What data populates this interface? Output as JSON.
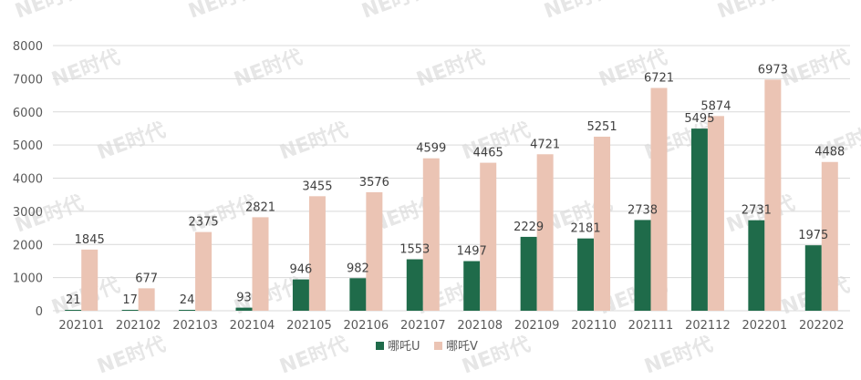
{
  "chart_data": {
    "type": "bar",
    "categories": [
      "202101",
      "202102",
      "202103",
      "202104",
      "202105",
      "202106",
      "202107",
      "202108",
      "202109",
      "202110",
      "202111",
      "202112",
      "202201",
      "202202"
    ],
    "series": [
      {
        "name": "哪吒U",
        "color": "#1f6b4a",
        "values": [
          21,
          17,
          24,
          93,
          946,
          982,
          1553,
          1497,
          2229,
          2181,
          2738,
          5495,
          2731,
          1975
        ]
      },
      {
        "name": "哪吒V",
        "color": "#ebc4b4",
        "values": [
          1845,
          677,
          2375,
          2821,
          3455,
          3576,
          4599,
          4465,
          4721,
          5251,
          6721,
          5874,
          6973,
          4488
        ]
      }
    ],
    "yticks": [
      0,
      1000,
      2000,
      3000,
      4000,
      5000,
      6000,
      7000,
      8000
    ],
    "ylim": [
      0,
      8000
    ],
    "grid": true,
    "legend_position": "bottom-center",
    "gridline_color": "#d9d9d9"
  },
  "watermark": "NE时代"
}
